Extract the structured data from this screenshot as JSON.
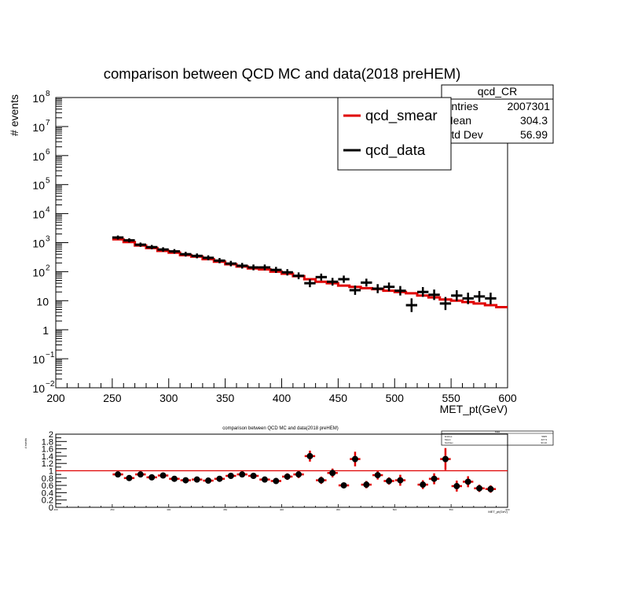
{
  "main": {
    "title": "comparison between QCD MC and data(2018 preHEM)",
    "ylabel": "# events",
    "xlabel": "MET_pt(GeV)",
    "x_ticks": [
      "200",
      "250",
      "300",
      "350",
      "400",
      "450",
      "500",
      "550",
      "600"
    ],
    "y_exponents": [
      "-2",
      "-1",
      "",
      "",
      "",
      "3",
      "4",
      "5",
      "6",
      "7",
      "8"
    ],
    "y_mantissa": [
      "10",
      "10",
      "1",
      "10",
      "10²",
      "10",
      "10",
      "10",
      "10",
      "10",
      "10"
    ],
    "legend": {
      "entries": [
        {
          "label": "qcd_smear",
          "color": "#e00000"
        },
        {
          "label": "qcd_data",
          "color": "#000000"
        }
      ]
    },
    "stats": {
      "name": "qcd_CR",
      "rows": [
        {
          "label": "Entries",
          "value": "2007301"
        },
        {
          "label": "Mean",
          "value": "304.3"
        },
        {
          "label": "Std Dev",
          "value": "56.99"
        }
      ]
    }
  },
  "ratio": {
    "title": "comparison between QCD MC and data(2018 preHEM)",
    "ylabel": "# events",
    "xlabel": "MET_pt(GeV)",
    "y_ticks": [
      "0",
      "0.2",
      "0.4",
      "0.6",
      "0.8",
      "1",
      "1.2",
      "1.4",
      "1.6",
      "1.8",
      "2"
    ],
    "x_ticks": [
      "200",
      "250",
      "300",
      "350",
      "400",
      "450",
      "500",
      "550",
      "600"
    ],
    "stats": {
      "name": "hratio",
      "rows": [
        {
          "label": "Entries",
          "value": "5905"
        },
        {
          "label": "Mean",
          "value": "427.9"
        },
        {
          "label": "Std Dev",
          "value": "93.10"
        }
      ]
    }
  },
  "chart_data": [
    {
      "type": "line",
      "title": "comparison between QCD MC and data(2018 preHEM)",
      "xlabel": "MET_pt(GeV)",
      "ylabel": "# events",
      "xlim": [
        200,
        600
      ],
      "ylim": [
        0.01,
        100000000
      ],
      "yscale": "log",
      "bin_width": 10,
      "series": [
        {
          "name": "qcd_smear",
          "color": "#e00000",
          "style": "step",
          "x": [
            250,
            260,
            270,
            280,
            290,
            300,
            310,
            320,
            330,
            340,
            350,
            360,
            370,
            380,
            390,
            400,
            410,
            420,
            430,
            440,
            450,
            460,
            470,
            480,
            490,
            500,
            510,
            520,
            530,
            540,
            550,
            560,
            570,
            580,
            590
          ],
          "values": [
            1300,
            1050,
            800,
            650,
            520,
            450,
            370,
            330,
            270,
            220,
            180,
            150,
            130,
            120,
            100,
            85,
            70,
            55,
            45,
            40,
            33,
            30,
            27,
            25,
            22,
            20,
            18,
            15,
            13,
            11,
            10,
            9,
            8,
            7,
            6
          ]
        },
        {
          "name": "qcd_data",
          "color": "#000000",
          "style": "marker",
          "x": [
            250,
            260,
            270,
            280,
            290,
            300,
            310,
            320,
            330,
            340,
            350,
            360,
            370,
            380,
            390,
            400,
            410,
            420,
            430,
            440,
            450,
            460,
            470,
            480,
            490,
            500,
            510,
            520,
            530,
            540,
            550,
            560,
            570,
            580,
            590
          ],
          "values": [
            1500,
            1200,
            850,
            700,
            580,
            500,
            400,
            350,
            300,
            240,
            190,
            160,
            140,
            140,
            115,
            95,
            72,
            40,
            65,
            45,
            55,
            23,
            42,
            26,
            30,
            22,
            7,
            20,
            16,
            8,
            15,
            12,
            14,
            12,
            null
          ]
        }
      ],
      "stats": {
        "name": "qcd_CR",
        "entries": 2007301,
        "mean": 304.3,
        "std_dev": 56.99
      }
    },
    {
      "type": "scatter",
      "title": "comparison between QCD MC and data(2018 preHEM)",
      "xlabel": "MET_pt(GeV)",
      "ylabel": "# events",
      "xlim": [
        200,
        600
      ],
      "ylim": [
        0,
        2
      ],
      "reference_line": 1,
      "x": [
        255,
        265,
        275,
        285,
        295,
        305,
        315,
        325,
        335,
        345,
        355,
        365,
        375,
        385,
        395,
        405,
        415,
        425,
        435,
        445,
        455,
        465,
        475,
        485,
        495,
        505,
        525,
        535,
        545,
        555,
        565,
        575,
        585
      ],
      "values": [
        0.9,
        0.8,
        0.9,
        0.82,
        0.87,
        0.78,
        0.74,
        0.76,
        0.73,
        0.78,
        0.86,
        0.9,
        0.86,
        0.76,
        0.72,
        0.84,
        0.9,
        1.4,
        0.74,
        0.94,
        0.6,
        1.32,
        0.62,
        0.88,
        0.72,
        0.74,
        0.62,
        0.78,
        1.32,
        0.58,
        0.7,
        0.52,
        0.5
      ],
      "errors": [
        0.05,
        0.05,
        0.05,
        0.05,
        0.05,
        0.05,
        0.05,
        0.05,
        0.05,
        0.05,
        0.06,
        0.06,
        0.07,
        0.07,
        0.08,
        0.09,
        0.1,
        0.15,
        0.1,
        0.12,
        0.05,
        0.2,
        0.1,
        0.12,
        0.1,
        0.15,
        0.12,
        0.15,
        0.3,
        0.15,
        0.15,
        0.1,
        0.1
      ],
      "stats": {
        "name": "hratio",
        "entries": 5905,
        "mean": 427.9,
        "std_dev": 93.1
      }
    }
  ]
}
